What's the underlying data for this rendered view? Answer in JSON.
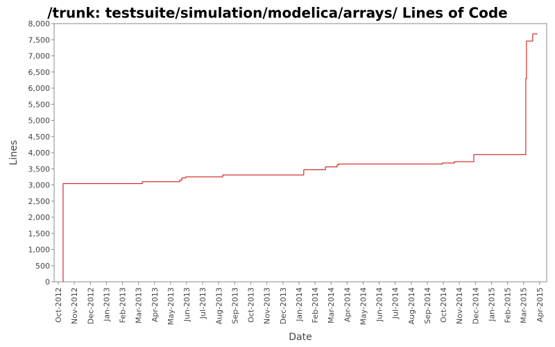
{
  "chart_data": {
    "type": "line",
    "step": "post",
    "title": "/trunk: testsuite/simulation/modelica/arrays/ Lines of Code",
    "x_label": "Date",
    "y_label": "Lines",
    "series": [
      {
        "name": "Lines",
        "color": "#cc0000",
        "x": [
          0.3,
          0.3,
          5.23,
          7.57,
          7.7,
          7.95,
          10.25,
          15.3,
          16.65,
          17.38,
          17.47,
          23.95,
          24.69,
          25.9,
          29.14,
          29.18,
          29.57,
          29.87
        ],
        "values": [
          0,
          3040,
          3100,
          3150,
          3220,
          3250,
          3310,
          3470,
          3560,
          3620,
          3650,
          3680,
          3720,
          3940,
          6300,
          7460,
          7680,
          7680
        ]
      }
    ],
    "xlim": [
      -0.26,
      30.44
    ],
    "xticks": [
      {
        "value": 0,
        "label": "Oct-2012"
      },
      {
        "value": 1,
        "label": "Nov-2012"
      },
      {
        "value": 2,
        "label": "Dec-2012"
      },
      {
        "value": 3,
        "label": "Jan-2013"
      },
      {
        "value": 4,
        "label": "Feb-2013"
      },
      {
        "value": 5,
        "label": "Mar-2013"
      },
      {
        "value": 6,
        "label": "Apr-2013"
      },
      {
        "value": 7,
        "label": "May-2013"
      },
      {
        "value": 8,
        "label": "Jun-2013"
      },
      {
        "value": 9,
        "label": "Jul-2013"
      },
      {
        "value": 10,
        "label": "Aug-2013"
      },
      {
        "value": 11,
        "label": "Sep-2013"
      },
      {
        "value": 12,
        "label": "Oct-2013"
      },
      {
        "value": 13,
        "label": "Nov-2013"
      },
      {
        "value": 14,
        "label": "Dec-2013"
      },
      {
        "value": 15,
        "label": "Jan-2014"
      },
      {
        "value": 16,
        "label": "Feb-2014"
      },
      {
        "value": 17,
        "label": "Mar-2014"
      },
      {
        "value": 18,
        "label": "Apr-2014"
      },
      {
        "value": 19,
        "label": "May-2014"
      },
      {
        "value": 20,
        "label": "Jun-2014"
      },
      {
        "value": 21,
        "label": "Jul-2014"
      },
      {
        "value": 22,
        "label": "Aug-2014"
      },
      {
        "value": 23,
        "label": "Sep-2014"
      },
      {
        "value": 24,
        "label": "Oct-2014"
      },
      {
        "value": 25,
        "label": "Nov-2014"
      },
      {
        "value": 26,
        "label": "Dec-2014"
      },
      {
        "value": 27,
        "label": "Jan-2015"
      },
      {
        "value": 28,
        "label": "Feb-2015"
      },
      {
        "value": 29,
        "label": "Mar-2015"
      },
      {
        "value": 30,
        "label": "Apr-2015"
      }
    ],
    "ylim": [
      0,
      8000
    ],
    "yticks": [
      0,
      500,
      {
        "value": 1000,
        "label": "1,000"
      },
      {
        "value": 1500,
        "label": "1,500"
      },
      {
        "value": 2000,
        "label": "2,000"
      },
      {
        "value": 2500,
        "label": "2,500"
      },
      {
        "value": 3000,
        "label": "3,000"
      },
      {
        "value": 3500,
        "label": "3,500"
      },
      {
        "value": 4000,
        "label": "4,000"
      },
      {
        "value": 4500,
        "label": "4,500"
      },
      {
        "value": 5000,
        "label": "5,000"
      },
      {
        "value": 5500,
        "label": "5,500"
      },
      {
        "value": 6000,
        "label": "6,000"
      },
      {
        "value": 6500,
        "label": "6,500"
      },
      {
        "value": 7000,
        "label": "7,000"
      },
      {
        "value": 7500,
        "label": "7,500"
      },
      {
        "value": 8000,
        "label": "8,000"
      }
    ],
    "grid": false
  }
}
